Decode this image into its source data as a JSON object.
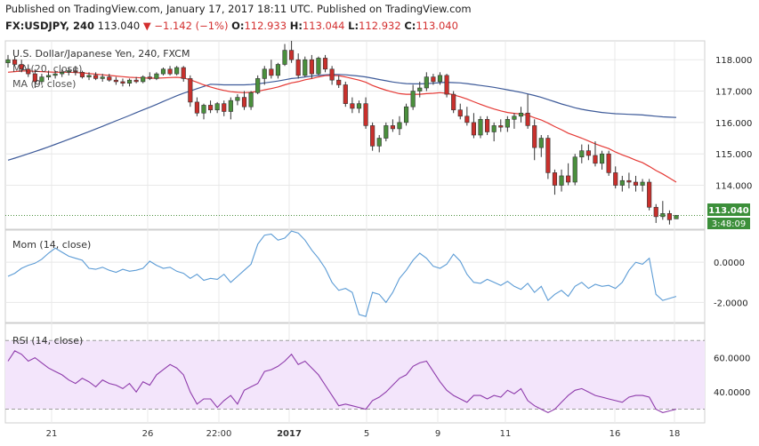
{
  "header": {
    "published": "Published on TradingView.com, January 17, 2017 18:11 UTC. Published on TradingView.com",
    "symbol": "FX:USDJPY, 240",
    "last": "113.040",
    "change": "▼ −1.142 (−1%)",
    "o_label": "O:",
    "o_value": "112.933",
    "h_label": "H:",
    "h_value": "113.044",
    "l_label": "L:",
    "l_value": "112.932",
    "c_label": "C:",
    "c_value": "113.040"
  },
  "colors": {
    "up": "#4a8f3c",
    "down": "#c9302c",
    "ema": "#e53935",
    "sma": "#3d5a99",
    "mom": "#5b9bd5",
    "rsi": "#8e3bab",
    "rsi_band": "#f3e5fb",
    "grid": "#e8e8e8"
  },
  "chart_data": [
    {
      "type": "candlestick",
      "title": "U.S. Dollar/Japanese Yen, 240, FXCM",
      "legend": [
        "MA (20, close)",
        "MA (9, close)"
      ],
      "ylim": [
        112.6,
        118.6
      ],
      "yticks": [
        "118.000",
        "117.000",
        "116.000",
        "115.000",
        "114.000"
      ],
      "last_price_label": "113.040",
      "countdown_label": "3:48:09",
      "x_ticks": [
        "21",
        "26",
        "22:00",
        "2017",
        "5",
        "9",
        "11",
        "16",
        "18"
      ],
      "candles": [
        [
          117.9,
          118.15,
          117.75,
          118.0
        ],
        [
          118.0,
          118.1,
          117.8,
          117.85
        ],
        [
          117.85,
          118.0,
          117.6,
          117.7
        ],
        [
          117.7,
          117.85,
          117.45,
          117.55
        ],
        [
          117.55,
          117.7,
          117.1,
          117.3
        ],
        [
          117.3,
          117.55,
          117.2,
          117.45
        ],
        [
          117.45,
          117.6,
          117.35,
          117.5
        ],
        [
          117.5,
          117.65,
          117.4,
          117.55
        ],
        [
          117.55,
          117.7,
          117.45,
          117.6
        ],
        [
          117.6,
          117.75,
          117.5,
          117.65
        ],
        [
          117.65,
          117.8,
          117.5,
          117.6
        ],
        [
          117.6,
          117.65,
          117.4,
          117.45
        ],
        [
          117.45,
          117.6,
          117.35,
          117.5
        ],
        [
          117.5,
          117.6,
          117.35,
          117.4
        ],
        [
          117.4,
          117.55,
          117.3,
          117.45
        ],
        [
          117.45,
          117.55,
          117.3,
          117.35
        ],
        [
          117.35,
          117.45,
          117.2,
          117.3
        ],
        [
          117.3,
          117.4,
          117.15,
          117.25
        ],
        [
          117.25,
          117.4,
          117.15,
          117.35
        ],
        [
          117.35,
          117.45,
          117.25,
          117.3
        ],
        [
          117.3,
          117.5,
          117.25,
          117.45
        ],
        [
          117.45,
          117.6,
          117.35,
          117.4
        ],
        [
          117.4,
          117.6,
          117.35,
          117.55
        ],
        [
          117.55,
          117.75,
          117.5,
          117.7
        ],
        [
          117.7,
          117.8,
          117.5,
          117.55
        ],
        [
          117.55,
          117.8,
          117.5,
          117.75
        ],
        [
          117.75,
          117.8,
          117.3,
          117.4
        ],
        [
          117.4,
          117.5,
          116.5,
          116.65
        ],
        [
          116.65,
          116.8,
          116.2,
          116.3
        ],
        [
          116.3,
          116.6,
          116.1,
          116.55
        ],
        [
          116.55,
          116.7,
          116.3,
          116.4
        ],
        [
          116.4,
          116.65,
          116.3,
          116.6
        ],
        [
          116.6,
          116.7,
          116.2,
          116.35
        ],
        [
          116.35,
          116.8,
          116.1,
          116.7
        ],
        [
          116.7,
          116.9,
          116.55,
          116.8
        ],
        [
          116.8,
          117.0,
          116.4,
          116.5
        ],
        [
          116.5,
          117.0,
          116.4,
          116.95
        ],
        [
          116.95,
          117.5,
          116.9,
          117.4
        ],
        [
          117.4,
          117.8,
          117.2,
          117.7
        ],
        [
          117.7,
          118.0,
          117.4,
          117.5
        ],
        [
          117.5,
          117.9,
          117.4,
          117.85
        ],
        [
          117.85,
          118.5,
          117.8,
          118.3
        ],
        [
          118.3,
          118.6,
          117.9,
          118.0
        ],
        [
          118.0,
          118.2,
          117.4,
          117.5
        ],
        [
          117.5,
          118.1,
          117.45,
          118.0
        ],
        [
          118.0,
          118.15,
          117.4,
          117.55
        ],
        [
          117.55,
          118.1,
          117.5,
          118.05
        ],
        [
          118.05,
          118.15,
          117.6,
          117.7
        ],
        [
          117.7,
          117.8,
          117.2,
          117.35
        ],
        [
          117.35,
          117.5,
          117.1,
          117.2
        ],
        [
          117.2,
          117.3,
          116.5,
          116.6
        ],
        [
          116.6,
          116.8,
          116.3,
          116.45
        ],
        [
          116.45,
          116.7,
          116.3,
          116.6
        ],
        [
          116.6,
          116.8,
          115.8,
          115.9
        ],
        [
          115.9,
          116.0,
          115.1,
          115.25
        ],
        [
          115.25,
          115.6,
          115.05,
          115.5
        ],
        [
          115.5,
          116.0,
          115.4,
          115.9
        ],
        [
          115.9,
          116.1,
          115.7,
          115.8
        ],
        [
          115.8,
          116.2,
          115.6,
          116.0
        ],
        [
          116.0,
          116.6,
          115.9,
          116.5
        ],
        [
          116.5,
          117.2,
          116.4,
          117.0
        ],
        [
          117.0,
          117.3,
          116.8,
          117.1
        ],
        [
          117.1,
          117.6,
          117.0,
          117.45
        ],
        [
          117.45,
          117.55,
          117.2,
          117.3
        ],
        [
          117.3,
          117.6,
          117.2,
          117.5
        ],
        [
          117.5,
          117.55,
          116.8,
          116.9
        ],
        [
          116.9,
          117.0,
          116.3,
          116.4
        ],
        [
          116.4,
          116.6,
          116.1,
          116.2
        ],
        [
          116.2,
          116.5,
          115.9,
          116.0
        ],
        [
          116.0,
          116.3,
          115.5,
          115.6
        ],
        [
          115.6,
          116.2,
          115.5,
          116.1
        ],
        [
          116.1,
          116.2,
          115.6,
          115.7
        ],
        [
          115.7,
          116.0,
          115.4,
          115.9
        ],
        [
          115.9,
          116.1,
          115.7,
          115.85
        ],
        [
          115.85,
          116.2,
          115.7,
          116.1
        ],
        [
          116.1,
          116.3,
          115.8,
          116.2
        ],
        [
          116.2,
          116.5,
          116.0,
          116.3
        ],
        [
          116.3,
          116.9,
          115.8,
          115.9
        ],
        [
          115.9,
          116.1,
          114.8,
          115.2
        ],
        [
          115.2,
          115.6,
          114.9,
          115.5
        ],
        [
          115.5,
          115.6,
          114.2,
          114.4
        ],
        [
          114.4,
          114.5,
          113.7,
          114.0
        ],
        [
          114.0,
          114.5,
          113.8,
          114.3
        ],
        [
          114.3,
          114.7,
          114.0,
          114.1
        ],
        [
          114.1,
          115.0,
          114.0,
          114.9
        ],
        [
          114.9,
          115.3,
          114.7,
          115.1
        ],
        [
          115.1,
          115.3,
          114.8,
          114.95
        ],
        [
          114.95,
          115.4,
          114.6,
          114.7
        ],
        [
          114.7,
          115.1,
          114.5,
          115.0
        ],
        [
          115.0,
          115.1,
          114.3,
          114.4
        ],
        [
          114.4,
          114.6,
          113.9,
          114.0
        ],
        [
          114.0,
          114.3,
          113.8,
          114.15
        ],
        [
          114.15,
          114.4,
          113.9,
          114.1
        ],
        [
          114.1,
          114.3,
          113.8,
          114.0
        ],
        [
          114.0,
          114.2,
          113.8,
          114.1
        ],
        [
          114.1,
          114.2,
          113.2,
          113.3
        ],
        [
          113.3,
          113.4,
          112.8,
          113.0
        ],
        [
          113.0,
          113.5,
          112.9,
          113.1
        ],
        [
          113.1,
          113.2,
          112.75,
          112.9
        ],
        [
          112.93,
          113.044,
          112.932,
          113.04
        ]
      ],
      "ma20": [
        117.6,
        117.62,
        117.64,
        117.64,
        117.63,
        117.62,
        117.61,
        117.6,
        117.6,
        117.6,
        117.59,
        117.58,
        117.56,
        117.54,
        117.52,
        117.5,
        117.48,
        117.46,
        117.44,
        117.43,
        117.42,
        117.41,
        117.41,
        117.42,
        117.43,
        117.44,
        117.42,
        117.36,
        117.28,
        117.2,
        117.13,
        117.07,
        117.02,
        116.98,
        116.96,
        116.95,
        116.96,
        116.99,
        117.04,
        117.08,
        117.13,
        117.2,
        117.26,
        117.3,
        117.36,
        117.4,
        117.45,
        117.49,
        117.5,
        117.49,
        117.45,
        117.4,
        117.35,
        117.28,
        117.18,
        117.1,
        117.03,
        116.97,
        116.92,
        116.9,
        116.9,
        116.9,
        116.92,
        116.93,
        116.95,
        116.93,
        116.88,
        116.82,
        116.75,
        116.66,
        116.58,
        116.5,
        116.43,
        116.37,
        116.32,
        116.29,
        116.27,
        116.23,
        116.15,
        116.08,
        115.98,
        115.87,
        115.77,
        115.66,
        115.58,
        115.5,
        115.41,
        115.32,
        115.24,
        115.17,
        115.06,
        114.97,
        114.89,
        114.8,
        114.72,
        114.6,
        114.47,
        114.36,
        114.23,
        114.1
      ],
      "ma9": [
        116.7,
        116.74,
        116.78,
        116.82,
        116.85,
        116.89,
        116.92,
        116.95,
        116.98,
        117.01,
        117.03,
        117.05,
        117.07,
        117.09,
        117.11,
        117.13,
        117.15,
        117.16,
        117.17,
        117.19,
        117.2,
        117.21,
        117.22,
        117.24,
        117.25,
        117.26,
        117.26,
        117.25,
        117.24,
        117.23,
        117.22,
        117.21,
        117.2,
        117.2,
        117.2,
        117.2,
        117.21,
        117.23,
        117.26,
        117.29,
        117.32,
        117.36,
        117.4,
        117.42,
        117.45,
        117.48,
        117.5,
        117.52,
        117.53,
        117.53,
        117.52,
        117.5,
        117.48,
        117.45,
        117.41,
        117.37,
        117.33,
        117.29,
        117.26,
        117.24,
        117.23,
        117.23,
        117.24,
        117.25,
        117.27,
        117.28,
        117.27,
        117.26,
        117.24,
        117.21,
        117.18,
        117.15,
        117.12,
        117.08,
        117.04,
        117.0,
        116.96,
        116.91,
        116.86,
        116.8,
        116.73,
        116.66,
        116.59,
        116.53,
        116.47,
        116.42,
        116.38,
        116.35,
        116.32,
        116.3,
        116.28,
        116.27,
        116.26,
        116.25,
        116.24,
        116.22,
        116.2,
        116.18,
        116.17,
        116.16
      ]
    },
    {
      "type": "line",
      "title": "Mom (14, close)",
      "ylim": [
        -3.0,
        1.6
      ],
      "yticks": [
        "0.0000",
        "-2.0000"
      ],
      "values": [
        -0.7,
        -0.55,
        -0.3,
        -0.15,
        -0.05,
        0.15,
        0.45,
        0.7,
        0.5,
        0.3,
        0.2,
        0.1,
        -0.3,
        -0.35,
        -0.25,
        -0.4,
        -0.5,
        -0.35,
        -0.45,
        -0.4,
        -0.3,
        0.05,
        -0.15,
        -0.3,
        -0.25,
        -0.45,
        -0.55,
        -0.8,
        -0.6,
        -0.9,
        -0.8,
        -0.85,
        -0.6,
        -1.0,
        -0.7,
        -0.4,
        -0.1,
        0.9,
        1.35,
        1.4,
        1.1,
        1.2,
        1.55,
        1.45,
        1.1,
        0.6,
        0.2,
        -0.3,
        -1.0,
        -1.4,
        -1.3,
        -1.5,
        -2.6,
        -2.7,
        -1.5,
        -1.6,
        -2.0,
        -1.5,
        -0.8,
        -0.4,
        0.1,
        0.45,
        0.2,
        -0.2,
        -0.3,
        -0.1,
        0.4,
        0.05,
        -0.6,
        -1.0,
        -1.05,
        -0.85,
        -1.0,
        -1.15,
        -0.95,
        -1.2,
        -1.35,
        -1.05,
        -1.5,
        -1.2,
        -1.9,
        -1.6,
        -1.4,
        -1.7,
        -1.2,
        -1.0,
        -1.3,
        -1.1,
        -1.2,
        -1.15,
        -1.3,
        -1.0,
        -0.4,
        0.0,
        -0.1,
        0.2,
        -1.6,
        -1.9,
        -1.8,
        -1.7
      ]
    },
    {
      "type": "line",
      "title": "RSI (14, close)",
      "ylim": [
        22,
        80
      ],
      "yticks": [
        "60.0000",
        "40.0000"
      ],
      "band": [
        30,
        70
      ],
      "values": [
        58,
        64,
        62,
        58,
        60,
        57,
        54,
        52,
        50,
        47,
        45,
        48,
        46,
        43,
        47,
        45,
        44,
        42,
        45,
        40,
        46,
        44,
        50,
        53,
        56,
        54,
        50,
        40,
        33,
        36,
        36,
        31,
        35,
        38,
        33,
        41,
        43,
        45,
        52,
        53,
        55,
        58,
        62,
        56,
        58,
        54,
        50,
        44,
        38,
        32,
        33,
        32,
        31,
        30,
        35,
        37,
        40,
        44,
        48,
        50,
        55,
        57,
        58,
        52,
        46,
        41,
        38,
        36,
        34,
        38,
        38,
        36,
        38,
        37,
        41,
        39,
        42,
        35,
        32,
        30,
        28,
        30,
        34,
        38,
        41,
        42,
        40,
        38,
        37,
        36,
        35,
        34,
        37,
        38,
        38,
        37,
        30,
        28,
        29,
        30
      ]
    }
  ]
}
